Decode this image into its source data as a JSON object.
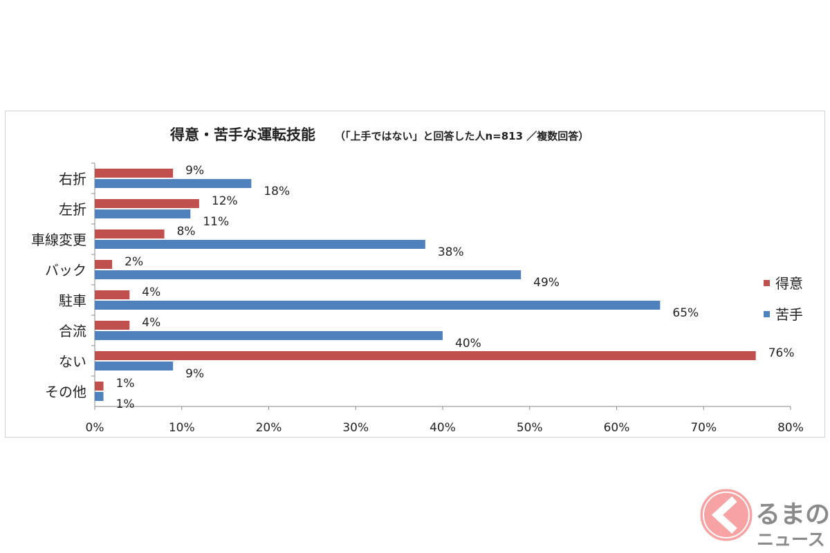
{
  "chart_data": {
    "type": "bar",
    "orientation": "horizontal",
    "title": "得意・苦手な運転技能",
    "subtitle": "（「上手ではない」と回答した人n=813 ／複数回答）",
    "categories": [
      "右折",
      "左折",
      "車線変更",
      "バック",
      "駐車",
      "合流",
      "ない",
      "その他"
    ],
    "series": [
      {
        "name": "得意",
        "color": "#c0504d",
        "values": [
          9,
          12,
          8,
          2,
          4,
          4,
          76,
          1
        ]
      },
      {
        "name": "苦手",
        "color": "#4f81bd",
        "values": [
          18,
          11,
          38,
          49,
          65,
          40,
          9,
          1
        ]
      }
    ],
    "xlim": [
      0,
      80
    ],
    "xticks": [
      "0%",
      "10%",
      "20%",
      "30%",
      "40%",
      "50%",
      "60%",
      "70%",
      "80%"
    ],
    "legend": "right",
    "grid": false
  },
  "logo": {
    "text": "くるまのニュース"
  }
}
